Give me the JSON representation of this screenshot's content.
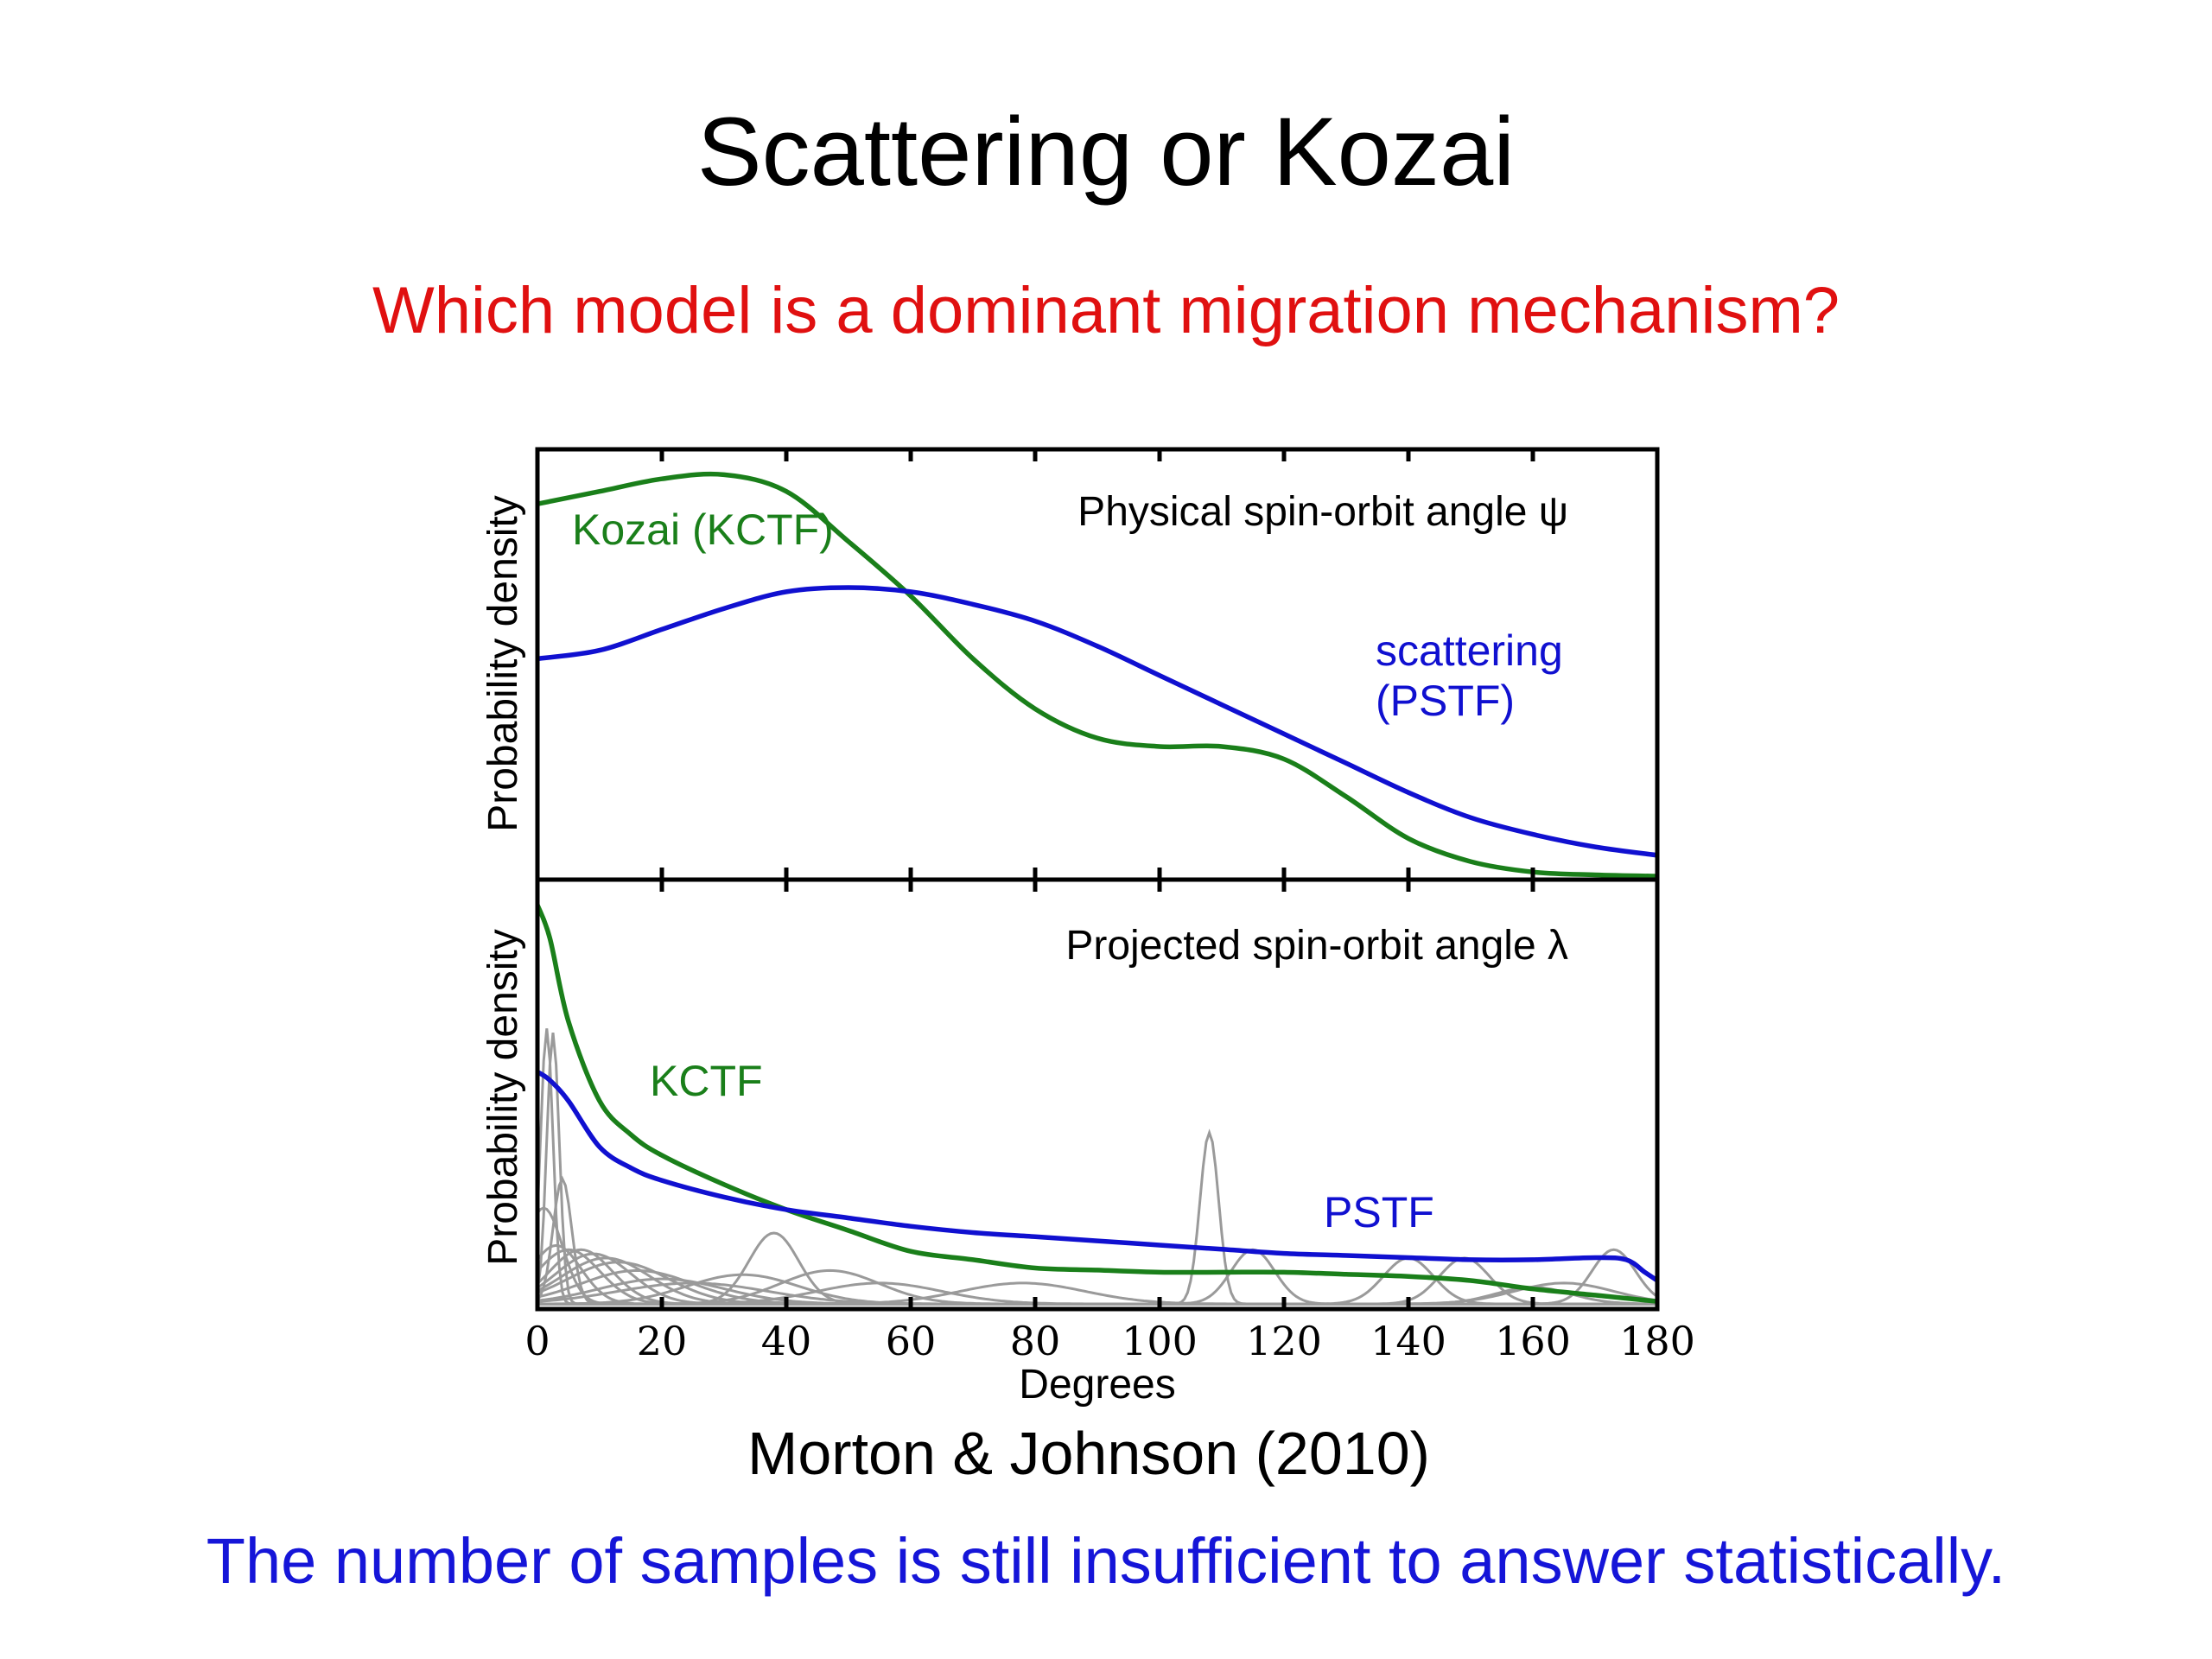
{
  "slide": {
    "title": "Scattering or Kozai",
    "subtitle": "Which model is a dominant migration mechanism?",
    "citation": "Morton & Johnson (2010)",
    "footer": "The number of samples is still insufficient to answer statistically."
  },
  "colors": {
    "kctf": "#1a7f1a",
    "pstf": "#1010d0",
    "samples": "#9a9a9a",
    "subtitle": "#e01010",
    "footer": "#1515d8"
  },
  "chart_data": [
    {
      "type": "line",
      "title": "Physical spin-orbit angle ψ",
      "xlabel": "",
      "ylabel": "Probability density",
      "xlim": [
        0,
        180
      ],
      "ylim": [
        0,
        1
      ],
      "y_ticks_labeled": false,
      "series": [
        {
          "name": "Kozai (KCTF)",
          "color": "#1a7f1a",
          "x": [
            0,
            10,
            20,
            30,
            40,
            50,
            60,
            70,
            80,
            90,
            100,
            110,
            120,
            130,
            140,
            150,
            160,
            170,
            180
          ],
          "y": [
            0.89,
            0.92,
            0.95,
            0.96,
            0.92,
            0.8,
            0.67,
            0.52,
            0.4,
            0.33,
            0.31,
            0.31,
            0.28,
            0.19,
            0.09,
            0.035,
            0.01,
            0.003,
            0.0
          ]
        },
        {
          "name": "scattering (PSTF)",
          "color": "#1010d0",
          "x": [
            0,
            10,
            20,
            30,
            40,
            50,
            60,
            70,
            80,
            90,
            100,
            110,
            120,
            130,
            140,
            150,
            160,
            170,
            180
          ],
          "y": [
            0.52,
            0.54,
            0.59,
            0.64,
            0.68,
            0.69,
            0.68,
            0.65,
            0.61,
            0.55,
            0.48,
            0.41,
            0.34,
            0.27,
            0.2,
            0.14,
            0.1,
            0.07,
            0.05
          ]
        }
      ]
    },
    {
      "type": "line",
      "title": "Projected spin-orbit angle λ",
      "xlabel": "Degrees",
      "ylabel": "Probability density",
      "xlim": [
        0,
        180
      ],
      "ylim": [
        0,
        1
      ],
      "x_ticks": [
        0,
        20,
        40,
        60,
        80,
        100,
        120,
        140,
        160,
        180
      ],
      "series": [
        {
          "name": "KCTF",
          "color": "#1a7f1a",
          "x": [
            0,
            2,
            5,
            10,
            15,
            20,
            30,
            40,
            50,
            60,
            70,
            80,
            90,
            100,
            110,
            120,
            130,
            140,
            150,
            160,
            170,
            180
          ],
          "y": [
            0.96,
            0.88,
            0.68,
            0.49,
            0.41,
            0.36,
            0.29,
            0.23,
            0.18,
            0.13,
            0.11,
            0.09,
            0.085,
            0.08,
            0.08,
            0.08,
            0.075,
            0.07,
            0.06,
            0.04,
            0.025,
            0.01
          ]
        },
        {
          "name": "PSTF",
          "color": "#1010d0",
          "x": [
            0,
            2,
            5,
            10,
            15,
            20,
            30,
            40,
            50,
            60,
            70,
            80,
            90,
            100,
            110,
            120,
            130,
            140,
            150,
            160,
            170,
            175,
            178,
            180
          ],
          "y": [
            0.56,
            0.54,
            0.49,
            0.38,
            0.33,
            0.3,
            0.26,
            0.23,
            0.21,
            0.19,
            0.175,
            0.165,
            0.155,
            0.145,
            0.135,
            0.125,
            0.12,
            0.115,
            0.11,
            0.11,
            0.115,
            0.11,
            0.08,
            0.06
          ]
        }
      ],
      "sample_curves": [
        {
          "center": 1.5,
          "width": 1.0,
          "height": 0.66
        },
        {
          "center": 2.5,
          "width": 1.0,
          "height": 0.65
        },
        {
          "center": 4,
          "width": 1.5,
          "height": 0.3
        },
        {
          "center": 1,
          "width": 3,
          "height": 0.23
        },
        {
          "center": 3,
          "width": 4,
          "height": 0.14
        },
        {
          "center": 5,
          "width": 5,
          "height": 0.13
        },
        {
          "center": 7,
          "width": 5,
          "height": 0.13
        },
        {
          "center": 9,
          "width": 6,
          "height": 0.12
        },
        {
          "center": 11,
          "width": 7,
          "height": 0.11
        },
        {
          "center": 13,
          "width": 8,
          "height": 0.1
        },
        {
          "center": 16,
          "width": 9,
          "height": 0.08
        },
        {
          "center": 20,
          "width": 10,
          "height": 0.06
        },
        {
          "center": 25,
          "width": 12,
          "height": 0.05
        },
        {
          "center": 38,
          "width": 4,
          "height": 0.17
        },
        {
          "center": 33,
          "width": 9,
          "height": 0.07
        },
        {
          "center": 47,
          "width": 8,
          "height": 0.08
        },
        {
          "center": 55,
          "width": 10,
          "height": 0.05
        },
        {
          "center": 78,
          "width": 10,
          "height": 0.05
        },
        {
          "center": 108,
          "width": 1.5,
          "height": 0.41
        },
        {
          "center": 115,
          "width": 3.5,
          "height": 0.13
        },
        {
          "center": 140,
          "width": 4,
          "height": 0.11
        },
        {
          "center": 149,
          "width": 4,
          "height": 0.11
        },
        {
          "center": 160,
          "width": 6,
          "height": 0.04
        },
        {
          "center": 173,
          "width": 3.5,
          "height": 0.13
        },
        {
          "center": 165,
          "width": 8,
          "height": 0.05
        }
      ]
    }
  ],
  "labels": {
    "top_kctf": "Kozai (KCTF)",
    "top_pstf_line1": "scattering",
    "top_pstf_line2": "(PSTF)",
    "bottom_kctf": "KCTF",
    "bottom_pstf": "PSTF"
  }
}
